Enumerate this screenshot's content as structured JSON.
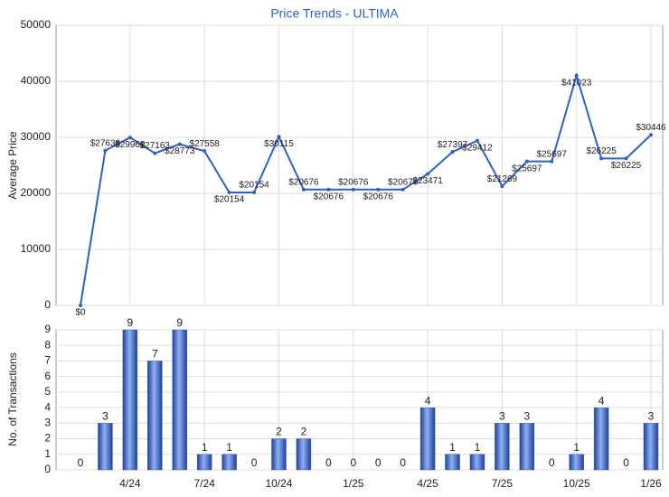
{
  "chart_data": [
    {
      "type": "line",
      "title": "Price Trends - ULTIMA",
      "y_label": "Average Price",
      "color": "#2f5fc8",
      "values": [
        0,
        27638,
        29968,
        27163,
        28773,
        27558,
        20154,
        20154,
        30115,
        20676,
        20676,
        20676,
        20676,
        20676,
        23471,
        27397,
        29412,
        21269,
        25697,
        25697,
        41023,
        26225,
        26225,
        30446
      ],
      "value_labels": [
        "$0",
        "$27638",
        "$29968",
        "$27163",
        "$28773",
        "$27558",
        "$20154",
        "$20154",
        "$30115",
        "$20676",
        "$20676",
        "$20676",
        "$20676",
        "$20676",
        "$23471",
        "$27397",
        "$29412",
        "$21269",
        "$25697",
        "$25697",
        "$41023",
        "$26225",
        "$26225",
        "$30446"
      ],
      "ylim": [
        0,
        50000
      ],
      "yticks": [
        0,
        10000,
        20000,
        30000,
        40000,
        50000
      ],
      "grid": true
    },
    {
      "type": "bar",
      "y_label": "No. of Transactions",
      "color": "#3a63c9",
      "categories": [
        null,
        null,
        "4/24",
        null,
        null,
        "7/24",
        null,
        null,
        "10/24",
        null,
        null,
        "1/25",
        null,
        null,
        "4/25",
        null,
        null,
        "7/25",
        null,
        null,
        "10/25",
        null,
        null,
        "1/26"
      ],
      "values": [
        0,
        3,
        9,
        7,
        9,
        1,
        1,
        0,
        2,
        2,
        0,
        0,
        0,
        0,
        4,
        1,
        1,
        3,
        3,
        0,
        1,
        4,
        0,
        3
      ],
      "ylim": [
        0,
        9
      ],
      "yticks": [
        0,
        1,
        2,
        3,
        4,
        5,
        6,
        7,
        8,
        9
      ],
      "grid": true
    }
  ]
}
